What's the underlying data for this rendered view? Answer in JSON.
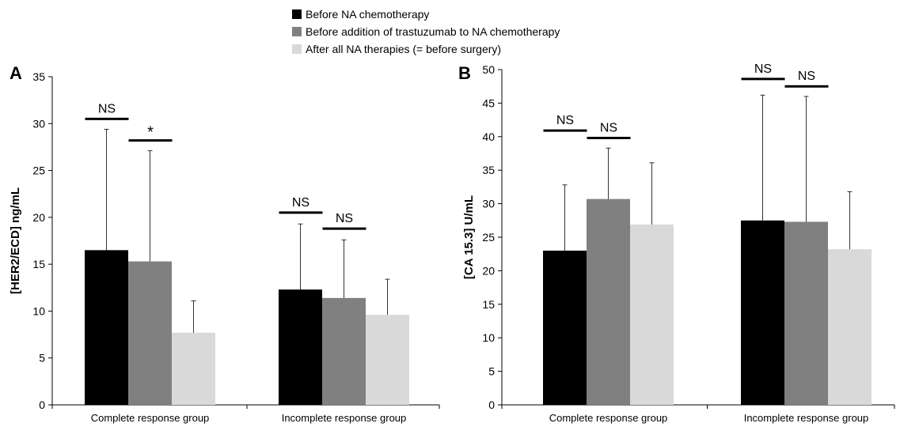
{
  "legend": {
    "items": [
      {
        "label": "Before NA chemotherapy",
        "color": "#000000"
      },
      {
        "label": "Before addition of trastuzumab to NA chemotherapy",
        "color": "#808080"
      },
      {
        "label": "After all NA therapies (= before surgery)",
        "color": "#d9d9d9"
      }
    ]
  },
  "chart_data": [
    {
      "type": "bar",
      "panel_label": "A",
      "ylabel": "[HER2/ECD] ng/mL",
      "xlabel": "",
      "ylim": [
        0,
        35
      ],
      "yticks": [
        0,
        5,
        10,
        15,
        20,
        25,
        30,
        35
      ],
      "categories": [
        "Complete response group",
        "Incomplete response group"
      ],
      "series": [
        {
          "values": [
            16.5,
            12.3
          ],
          "error_upper": [
            29.4,
            19.3
          ],
          "color": "#000000"
        },
        {
          "values": [
            15.3,
            11.4
          ],
          "error_upper": [
            27.1,
            17.6
          ],
          "color": "#808080"
        },
        {
          "values": [
            7.7,
            9.6
          ],
          "error_upper": [
            11.1,
            13.4
          ],
          "color": "#d9d9d9"
        }
      ],
      "annotations": [
        {
          "text": "NS",
          "category": 0,
          "from_series": 0,
          "to_series": 1,
          "y": 30.5
        },
        {
          "text": "*",
          "category": 0,
          "from_series": 1,
          "to_series": 2,
          "y": 28.2
        },
        {
          "text": "NS",
          "category": 1,
          "from_series": 0,
          "to_series": 1,
          "y": 20.5
        },
        {
          "text": "NS",
          "category": 1,
          "from_series": 1,
          "to_series": 2,
          "y": 18.8
        }
      ],
      "grid": false
    },
    {
      "type": "bar",
      "panel_label": "B",
      "ylabel": "[CA 15.3] U/mL",
      "xlabel": "",
      "ylim": [
        0,
        50
      ],
      "yticks": [
        0,
        5,
        10,
        15,
        20,
        25,
        30,
        35,
        40,
        45,
        50
      ],
      "categories": [
        "Complete response group",
        "Incomplete response group"
      ],
      "series": [
        {
          "values": [
            23.0,
            27.5
          ],
          "error_upper": [
            32.8,
            46.2
          ],
          "color": "#000000"
        },
        {
          "values": [
            30.7,
            27.3
          ],
          "error_upper": [
            38.3,
            46.0
          ],
          "color": "#808080"
        },
        {
          "values": [
            26.9,
            23.2
          ],
          "error_upper": [
            36.1,
            31.8
          ],
          "color": "#d9d9d9"
        }
      ],
      "annotations": [
        {
          "text": "NS",
          "category": 0,
          "from_series": 0,
          "to_series": 1,
          "y": 40.9
        },
        {
          "text": "NS",
          "category": 0,
          "from_series": 1,
          "to_series": 2,
          "y": 39.8
        },
        {
          "text": "NS",
          "category": 1,
          "from_series": 0,
          "to_series": 1,
          "y": 48.6
        },
        {
          "text": "NS",
          "category": 1,
          "from_series": 1,
          "to_series": 2,
          "y": 47.5
        }
      ],
      "grid": false
    }
  ]
}
